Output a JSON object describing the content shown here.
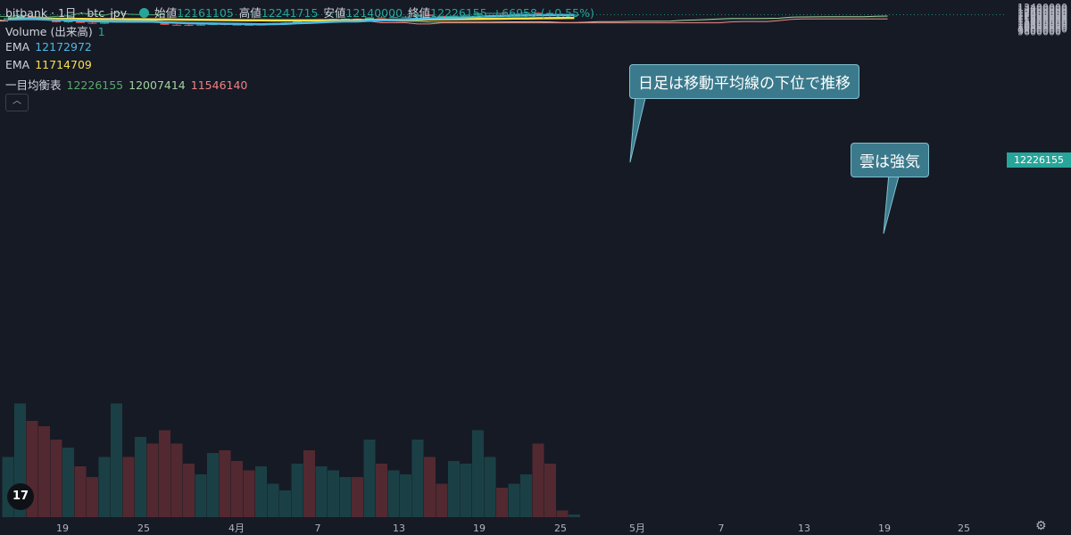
{
  "header": {
    "symbol": "bitbank · 1日 · btc_jpy",
    "open_label": "始値",
    "open": "12161105",
    "high_label": "高値",
    "high": "12241715",
    "low_label": "安値",
    "low": "12140000",
    "close_label": "終値",
    "close": "12226155",
    "change": "+66958 (+0.55%)"
  },
  "indicators": {
    "volume_label": "Volume (出来高)",
    "volume_value": "1",
    "ema1_label": "EMA",
    "ema1_value": "12172972",
    "ema2_label": "EMA",
    "ema2_value": "11714709",
    "ichimoku_label": "一目均衡表",
    "ichimoku_v1": "12226155",
    "ichimoku_v2": "12007414",
    "ichimoku_v3": "11546140"
  },
  "callouts": {
    "text1": "日足は移動平均線の下位で推移",
    "text2": "雲は強気"
  },
  "current_price": "12226155",
  "colors": {
    "bg": "#161a25",
    "up": "#26a69a",
    "down": "#ef5350",
    "ema_fast": "#4fb8e0",
    "ema_slow": "#f5e04a",
    "span_a": "#9fd39f",
    "span_b": "#f08080",
    "chikou": "#5aa86a"
  },
  "chart_data": {
    "type": "candlestick",
    "title": "bitbank · 1日 · btc_jpy",
    "y_ticks": [
      9600000,
      9800000,
      10000000,
      10200000,
      10400000,
      10600000,
      10800000,
      11000000,
      11200000,
      11400000,
      11600000,
      11800000,
      12000000,
      12200000,
      12400000,
      12600000,
      12800000,
      13000000,
      13200000,
      13400000
    ],
    "ylim": [
      9460000,
      13470000
    ],
    "x_ticks": [
      "19",
      "25",
      "4月",
      "7",
      "13",
      "19",
      "25",
      "5月",
      "7",
      "13",
      "19",
      "25"
    ],
    "grid": false,
    "candles": [
      {
        "o": 11420000,
        "h": 11690000,
        "l": 11300000,
        "c": 11650000
      },
      {
        "o": 11650000,
        "h": 12000000,
        "l": 11600000,
        "c": 11950000
      },
      {
        "o": 11950000,
        "h": 12120000,
        "l": 11700000,
        "c": 11780000
      },
      {
        "o": 11780000,
        "h": 11900000,
        "l": 11350000,
        "c": 11400000
      },
      {
        "o": 11400000,
        "h": 11550000,
        "l": 10980000,
        "c": 11050000
      },
      {
        "o": 11050000,
        "h": 11350000,
        "l": 10950000,
        "c": 11280000
      },
      {
        "o": 11280000,
        "h": 11350000,
        "l": 10900000,
        "c": 10950000
      },
      {
        "o": 10950000,
        "h": 11150000,
        "l": 10800000,
        "c": 10820000
      },
      {
        "o": 10820000,
        "h": 11050000,
        "l": 10780000,
        "c": 11000000
      },
      {
        "o": 11000000,
        "h": 11350000,
        "l": 10950000,
        "c": 11250000
      },
      {
        "o": 11250000,
        "h": 11400000,
        "l": 11100000,
        "c": 11230000
      },
      {
        "o": 11230000,
        "h": 11400000,
        "l": 11150000,
        "c": 11360000
      },
      {
        "o": 11360000,
        "h": 11400000,
        "l": 11000000,
        "c": 11030000
      },
      {
        "o": 11030000,
        "h": 11100000,
        "l": 10620000,
        "c": 10650000
      },
      {
        "o": 10650000,
        "h": 10780000,
        "l": 10560000,
        "c": 10640000
      },
      {
        "o": 10640000,
        "h": 10700000,
        "l": 10450000,
        "c": 10560000
      },
      {
        "o": 10560000,
        "h": 10700000,
        "l": 10500000,
        "c": 10660000
      },
      {
        "o": 10660000,
        "h": 10800000,
        "l": 10560000,
        "c": 10760000
      },
      {
        "o": 10760000,
        "h": 10850000,
        "l": 10550000,
        "c": 10680000
      },
      {
        "o": 10680000,
        "h": 10800000,
        "l": 10550000,
        "c": 10650000
      },
      {
        "o": 10650000,
        "h": 10680000,
        "l": 10580000,
        "c": 10620000
      },
      {
        "o": 10620000,
        "h": 10700000,
        "l": 10600000,
        "c": 10680000
      },
      {
        "o": 10680000,
        "h": 10940000,
        "l": 10650000,
        "c": 10920000
      },
      {
        "o": 10920000,
        "h": 11050000,
        "l": 10850000,
        "c": 11000000
      },
      {
        "o": 11000000,
        "h": 11420000,
        "l": 10950000,
        "c": 11380000
      },
      {
        "o": 11380000,
        "h": 11480000,
        "l": 11250000,
        "c": 11280000
      },
      {
        "o": 11280000,
        "h": 11420000,
        "l": 11200000,
        "c": 11400000
      },
      {
        "o": 11400000,
        "h": 11600000,
        "l": 11320000,
        "c": 11580000
      },
      {
        "o": 11580000,
        "h": 11660000,
        "l": 11520000,
        "c": 11610000
      },
      {
        "o": 11610000,
        "h": 11650000,
        "l": 11150000,
        "c": 11190000
      },
      {
        "o": 11190000,
        "h": 11850000,
        "l": 11170000,
        "c": 11800000
      },
      {
        "o": 11800000,
        "h": 12000000,
        "l": 11700000,
        "c": 11760000
      },
      {
        "o": 11760000,
        "h": 11950000,
        "l": 11700000,
        "c": 11850000
      },
      {
        "o": 11850000,
        "h": 12050000,
        "l": 11750000,
        "c": 11920000
      },
      {
        "o": 11920000,
        "h": 12300000,
        "l": 11880000,
        "c": 12240000
      },
      {
        "o": 12240000,
        "h": 12250000,
        "l": 12000000,
        "c": 12040000
      },
      {
        "o": 12040000,
        "h": 12080000,
        "l": 11700000,
        "c": 11780000
      },
      {
        "o": 11780000,
        "h": 12100000,
        "l": 11740000,
        "c": 12080000
      },
      {
        "o": 12080000,
        "h": 12250000,
        "l": 12020000,
        "c": 12200000
      },
      {
        "o": 12200000,
        "h": 12620000,
        "l": 12180000,
        "c": 12460000
      },
      {
        "o": 12460000,
        "h": 12520000,
        "l": 12440000,
        "c": 12500000
      },
      {
        "o": 12500000,
        "h": 12520000,
        "l": 12330000,
        "c": 12350000
      },
      {
        "o": 12350000,
        "h": 12440000,
        "l": 12340000,
        "c": 12380000
      },
      {
        "o": 12380000,
        "h": 12550000,
        "l": 12320000,
        "c": 12530000
      },
      {
        "o": 12530000,
        "h": 12620000,
        "l": 12280000,
        "c": 12320000
      },
      {
        "o": 12320000,
        "h": 12340000,
        "l": 12160000,
        "c": 12180000
      },
      {
        "o": 12180000,
        "h": 12420000,
        "l": 12120000,
        "c": 12170000
      },
      {
        "o": 12161105,
        "h": 12241715,
        "l": 12140000,
        "c": 12226155
      }
    ],
    "volumes": [
      0.45,
      0.85,
      0.72,
      0.68,
      0.58,
      0.52,
      0.38,
      0.3,
      0.45,
      0.85,
      0.45,
      0.6,
      0.55,
      0.65,
      0.55,
      0.4,
      0.32,
      0.48,
      0.5,
      0.42,
      0.35,
      0.38,
      0.25,
      0.2,
      0.4,
      0.5,
      0.38,
      0.35,
      0.3,
      0.3,
      0.58,
      0.4,
      0.35,
      0.32,
      0.58,
      0.45,
      0.25,
      0.42,
      0.4,
      0.65,
      0.45,
      0.22,
      0.25,
      0.32,
      0.55,
      0.4,
      0.05,
      0.02
    ],
    "ema_fast": [
      11500000,
      11520000,
      11550000,
      11480000,
      11400000,
      11380000,
      11300000,
      11220000,
      11180000,
      11170000,
      11150000,
      11160000,
      11130000,
      11050000,
      10970000,
      10900000,
      10860000,
      10850000,
      10820000,
      10790000,
      10760000,
      10740000,
      10760000,
      10800000,
      10900000,
      10960000,
      11040000,
      11120000,
      11180000,
      11180000,
      11280000,
      11330000,
      11400000,
      11480000,
      11580000,
      11640000,
      11680000,
      11730000,
      11800000,
      11900000,
      11980000,
      12030000,
      12080000,
      12120000,
      12150000,
      12160000,
      12165000,
      12172972
    ],
    "ema_slow": [
      11640000,
      11630000,
      11620000,
      11605000,
      11580000,
      11565000,
      11550000,
      11540000,
      11530000,
      11520000,
      11510000,
      11505000,
      11495000,
      11480000,
      11460000,
      11440000,
      11420000,
      11405000,
      11390000,
      11375000,
      11360000,
      11345000,
      11335000,
      11330000,
      11330000,
      11335000,
      11340000,
      11350000,
      11360000,
      11370000,
      11390000,
      11410000,
      11430000,
      11450000,
      11470000,
      11490000,
      11505000,
      11520000,
      11540000,
      11560000,
      11580000,
      11600000,
      11620000,
      11640000,
      11660000,
      11680000,
      11700000,
      11714709
    ],
    "span_a": [
      null,
      null,
      null,
      null,
      null,
      null,
      null,
      null,
      null,
      null,
      null,
      null,
      null,
      null,
      null,
      null,
      null,
      null,
      null,
      null,
      null,
      null,
      null,
      null,
      null,
      null,
      null,
      null,
      null,
      null,
      11250000,
      11250000,
      11250000,
      11220000,
      11220000,
      11100000,
      11060000,
      11060000,
      11060000,
      11060000,
      11080000,
      11100000,
      11110000,
      11120000,
      11120000,
      11100000,
      11010000,
      11000000,
      11050000,
      11130000,
      11150000,
      11170000,
      11200000,
      11210000,
      11200000,
      11240000,
      11350000,
      11400000,
      11470000,
      11560000,
      11620000,
      11640000,
      11640000,
      11650000,
      11680000,
      11850000,
      11870000,
      11890000,
      11900000,
      11900000,
      11900000,
      11920000,
      11980000,
      12010000
    ],
    "span_b": [
      null,
      null,
      null,
      null,
      null,
      null,
      null,
      null,
      null,
      null,
      null,
      null,
      null,
      null,
      null,
      null,
      null,
      null,
      null,
      null,
      null,
      null,
      null,
      null,
      null,
      null,
      null,
      null,
      null,
      null,
      11220000,
      10970000,
      10970000,
      10970000,
      10780000,
      10780000,
      10950000,
      10950000,
      10950000,
      10950000,
      10950000,
      10950000,
      10950000,
      10950000,
      10950000,
      10950000,
      10950000,
      10950000,
      10950000,
      10950000,
      10950000,
      10950000,
      10950000,
      10950000,
      10950000,
      10950000,
      10950000,
      10950000,
      10950000,
      10950000,
      11100000,
      11150000,
      11150000,
      11150000,
      11300000,
      11500000,
      11550000,
      11550000,
      11550000,
      11550000,
      11550000,
      11550000,
      11550000,
      11550000
    ],
    "span_a_past": [
      11270000,
      11270000,
      11050000,
      11000000,
      11000000,
      10950000,
      10800000,
      10700000,
      10650000,
      10560000,
      10560000,
      10500000,
      10450000,
      10450000,
      10500000,
      10500000,
      10560000,
      10650000,
      10650000,
      10700000,
      10800000,
      10900000,
      10950000,
      11050000,
      11050000,
      11050000,
      11150000,
      11200000,
      11220000,
      11230000,
      11250000
    ],
    "span_b_past": [
      12410000,
      12410000,
      12410000,
      12410000,
      12410000,
      12410000,
      12410000,
      12410000,
      12410000,
      12410000,
      12410000,
      12410000,
      12410000,
      12410000,
      12410000,
      12410000,
      12410000,
      12380000,
      12360000,
      12300000,
      12200000,
      12100000,
      12050000,
      11900000,
      11800000,
      11700000,
      11650000,
      11640000,
      11620000,
      11500000,
      11220000
    ],
    "chikou": [
      11550000,
      11700000,
      11900000,
      11400000,
      11550000,
      11750000,
      11850000,
      12000000,
      11900000,
      12150000,
      11980000,
      11800000,
      11950000,
      12050000,
      12450000,
      12320000,
      12150000,
      12550000,
      12300000,
      12240000,
      12210000,
      12260000
    ]
  }
}
